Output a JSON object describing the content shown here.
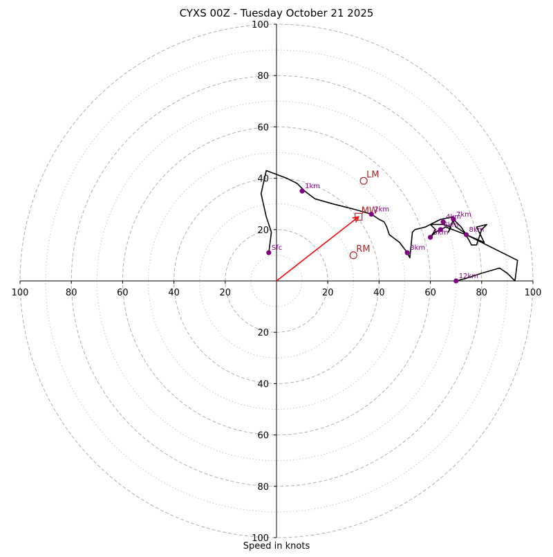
{
  "chart_data": {
    "type": "hodograph",
    "title": "CYXS 00Z - Tuesday October 21 2025",
    "xlabel": "Speed in knots",
    "range": [
      -100,
      100
    ],
    "rings_major": [
      20,
      40,
      60,
      80,
      100
    ],
    "rings_minor": [
      10,
      30,
      50,
      70,
      90
    ],
    "x_ticks": [
      {
        "value": -100,
        "label": "100"
      },
      {
        "value": -80,
        "label": "80"
      },
      {
        "value": -60,
        "label": "60"
      },
      {
        "value": -40,
        "label": "40"
      },
      {
        "value": -20,
        "label": "20"
      },
      {
        "value": 20,
        "label": "20"
      },
      {
        "value": 40,
        "label": "40"
      },
      {
        "value": 60,
        "label": "60"
      },
      {
        "value": 80,
        "label": "80"
      },
      {
        "value": 100,
        "label": "100"
      }
    ],
    "y_ticks": [
      {
        "value": 100,
        "label": "100"
      },
      {
        "value": 80,
        "label": "80"
      },
      {
        "value": 60,
        "label": "60"
      },
      {
        "value": 40,
        "label": "40"
      },
      {
        "value": 20,
        "label": "20"
      },
      {
        "value": -20,
        "label": "20"
      },
      {
        "value": -40,
        "label": "40"
      },
      {
        "value": -60,
        "label": "60"
      },
      {
        "value": -80,
        "label": "80"
      },
      {
        "value": -100,
        "label": "100"
      }
    ],
    "trace": [
      [
        -3,
        11
      ],
      [
        -2,
        19
      ],
      [
        -4,
        25
      ],
      [
        -6,
        34
      ],
      [
        -4,
        43
      ],
      [
        4,
        40
      ],
      [
        8,
        38
      ],
      [
        11,
        35
      ],
      [
        15,
        32
      ],
      [
        22,
        30
      ],
      [
        30,
        28
      ],
      [
        37,
        26
      ],
      [
        40,
        24
      ],
      [
        42,
        23
      ],
      [
        43,
        21
      ],
      [
        44,
        18
      ],
      [
        48,
        15
      ],
      [
        51,
        11
      ],
      [
        52,
        9
      ],
      [
        53,
        19
      ],
      [
        54,
        20
      ],
      [
        58,
        21
      ],
      [
        60,
        22
      ],
      [
        64,
        24
      ],
      [
        69,
        25
      ],
      [
        69,
        23
      ],
      [
        70,
        21
      ],
      [
        73,
        19
      ],
      [
        75,
        16
      ],
      [
        76,
        14
      ],
      [
        78,
        14
      ],
      [
        80,
        20
      ],
      [
        82,
        22
      ],
      [
        78,
        21
      ],
      [
        81,
        15
      ],
      [
        74,
        18
      ],
      [
        66,
        21
      ],
      [
        62,
        19
      ],
      [
        60,
        17
      ],
      [
        62,
        20
      ],
      [
        60,
        22
      ],
      [
        65,
        22
      ],
      [
        68,
        21
      ],
      [
        67,
        19
      ],
      [
        69,
        24
      ],
      [
        72,
        21
      ],
      [
        74,
        18
      ],
      [
        78,
        16
      ],
      [
        82,
        14
      ],
      [
        88,
        11
      ],
      [
        94,
        8
      ],
      [
        93,
        0
      ],
      [
        90,
        3
      ],
      [
        87,
        5
      ],
      [
        80,
        3
      ],
      [
        74,
        1
      ],
      [
        70,
        0
      ]
    ],
    "height_markers": [
      {
        "label": "Sfc",
        "u": -3,
        "v": 11
      },
      {
        "label": "1km",
        "u": 10,
        "v": 35
      },
      {
        "label": "2km",
        "u": 37,
        "v": 26
      },
      {
        "label": "3km",
        "u": 51,
        "v": 11
      },
      {
        "label": "4km",
        "u": 65,
        "v": 23
      },
      {
        "label": "5km",
        "u": 60,
        "v": 17
      },
      {
        "label": "6km",
        "u": 64,
        "v": 20
      },
      {
        "label": "7km",
        "u": 69,
        "v": 24
      },
      {
        "label": "8km",
        "u": 74,
        "v": 18
      },
      {
        "label": "12km",
        "u": 70,
        "v": 0
      }
    ],
    "storm_motion_points": [
      {
        "label": "LM",
        "u": 34,
        "v": 39,
        "marker": "circle"
      },
      {
        "label": "RM",
        "u": 30,
        "v": 10,
        "marker": "circle"
      },
      {
        "label": "MW",
        "u": 32,
        "v": 25,
        "marker": "square"
      }
    ],
    "mean_wind_vector": {
      "u": 32,
      "v": 25
    },
    "colors": {
      "trace": "#000000",
      "markers": "#800080",
      "storm_points": "#b22222",
      "vector": "#ff0000",
      "grid_major": "#b0b0b0",
      "grid_minor": "#c8c8c8",
      "axes": "#000000"
    }
  }
}
